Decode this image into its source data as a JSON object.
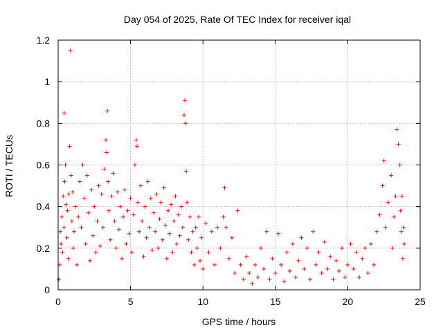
{
  "chart_data": {
    "type": "scatter",
    "title": "Day 054 of 2025, Rate Of TEC Index for receiver iqal",
    "xlabel": "GPS time / hours",
    "ylabel": "ROTI / TECUs",
    "xlim": [
      0,
      25
    ],
    "ylim": [
      0,
      1.2
    ],
    "xticks": [
      0,
      5,
      10,
      15,
      20,
      25
    ],
    "xtick_labels": [
      "0",
      "5",
      "10",
      "15",
      "20",
      "25"
    ],
    "yticks": [
      0,
      0.2,
      0.4,
      0.6,
      0.8,
      1.0,
      1.2
    ],
    "ytick_labels": [
      "0",
      "0.2",
      "0.4",
      "0.6",
      "0.8",
      "1",
      "1.2"
    ],
    "grid": true,
    "marker": "plus",
    "color": "#ff0000",
    "series": [
      {
        "name": "ROTI",
        "points": [
          [
            0.05,
            0.05
          ],
          [
            0.1,
            0.12
          ],
          [
            0.15,
            0.28
          ],
          [
            0.2,
            0.22
          ],
          [
            0.25,
            0.35
          ],
          [
            0.3,
            0.18
          ],
          [
            0.35,
            0.45
          ],
          [
            0.4,
            0.3
          ],
          [
            0.45,
            0.52
          ],
          [
            0.5,
            0.6
          ],
          [
            0.42,
            0.85
          ],
          [
            0.55,
            0.41
          ],
          [
            0.6,
            0.25
          ],
          [
            0.65,
            0.38
          ],
          [
            0.7,
            0.15
          ],
          [
            0.75,
            0.46
          ],
          [
            0.8,
            0.69
          ],
          [
            0.85,
            1.15
          ],
          [
            0.9,
            0.55
          ],
          [
            0.95,
            0.33
          ],
          [
            1.0,
            0.47
          ],
          [
            1.05,
            0.2
          ],
          [
            1.1,
            0.28
          ],
          [
            1.2,
            0.4
          ],
          [
            1.3,
            0.12
          ],
          [
            1.4,
            0.35
          ],
          [
            1.5,
            0.52
          ],
          [
            1.6,
            0.3
          ],
          [
            1.7,
            0.6
          ],
          [
            1.8,
            0.44
          ],
          [
            1.9,
            0.22
          ],
          [
            2.0,
            0.55
          ],
          [
            2.1,
            0.37
          ],
          [
            2.2,
            0.14
          ],
          [
            2.3,
            0.48
          ],
          [
            2.4,
            0.26
          ],
          [
            2.5,
            0.4
          ],
          [
            2.6,
            0.18
          ],
          [
            2.7,
            0.33
          ],
          [
            2.8,
            0.5
          ],
          [
            2.9,
            0.21
          ],
          [
            3.0,
            0.46
          ],
          [
            3.1,
            0.3
          ],
          [
            3.2,
            0.58
          ],
          [
            3.3,
            0.72
          ],
          [
            3.35,
            0.66
          ],
          [
            3.4,
            0.86
          ],
          [
            3.45,
            0.52
          ],
          [
            3.5,
            0.38
          ],
          [
            3.6,
            0.24
          ],
          [
            3.7,
            0.45
          ],
          [
            3.8,
            0.56
          ],
          [
            3.9,
            0.33
          ],
          [
            4.0,
            0.2
          ],
          [
            4.1,
            0.47
          ],
          [
            4.2,
            0.29
          ],
          [
            4.3,
            0.4
          ],
          [
            4.4,
            0.15
          ],
          [
            4.5,
            0.35
          ],
          [
            4.6,
            0.48
          ],
          [
            4.7,
            0.22
          ],
          [
            4.8,
            0.38
          ],
          [
            4.9,
            0.27
          ],
          [
            5.0,
            0.44
          ],
          [
            5.1,
            0.18
          ],
          [
            5.2,
            0.36
          ],
          [
            5.3,
            0.6
          ],
          [
            5.4,
            0.72
          ],
          [
            5.45,
            0.69
          ],
          [
            5.5,
            0.42
          ],
          [
            5.6,
            0.28
          ],
          [
            5.7,
            0.5
          ],
          [
            5.8,
            0.33
          ],
          [
            5.9,
            0.16
          ],
          [
            6.0,
            0.4
          ],
          [
            6.1,
            0.25
          ],
          [
            6.2,
            0.52
          ],
          [
            6.3,
            0.3
          ],
          [
            6.4,
            0.44
          ],
          [
            6.5,
            0.19
          ],
          [
            6.6,
            0.37
          ],
          [
            6.7,
            0.28
          ],
          [
            6.8,
            0.46
          ],
          [
            6.9,
            0.2
          ],
          [
            7.0,
            0.34
          ],
          [
            7.1,
            0.42
          ],
          [
            7.2,
            0.24
          ],
          [
            7.3,
            0.49
          ],
          [
            7.4,
            0.31
          ],
          [
            7.5,
            0.15
          ],
          [
            7.6,
            0.38
          ],
          [
            7.7,
            0.27
          ],
          [
            7.8,
            0.41
          ],
          [
            7.9,
            0.18
          ],
          [
            8.0,
            0.33
          ],
          [
            8.1,
            0.45
          ],
          [
            8.2,
            0.22
          ],
          [
            8.3,
            0.36
          ],
          [
            8.4,
            0.26
          ],
          [
            8.5,
            0.4
          ],
          [
            8.6,
            0.3
          ],
          [
            8.7,
            0.84
          ],
          [
            8.75,
            0.91
          ],
          [
            8.8,
            0.8
          ],
          [
            8.85,
            0.57
          ],
          [
            8.9,
            0.42
          ],
          [
            9.0,
            0.24
          ],
          [
            9.1,
            0.35
          ],
          [
            9.2,
            0.18
          ],
          [
            9.3,
            0.28
          ],
          [
            9.4,
            0.12
          ],
          [
            9.5,
            0.3
          ],
          [
            9.6,
            0.2
          ],
          [
            9.7,
            0.35
          ],
          [
            9.8,
            0.14
          ],
          [
            9.9,
            0.25
          ],
          [
            10.0,
            0.1
          ],
          [
            10.2,
            0.32
          ],
          [
            10.4,
            0.18
          ],
          [
            10.6,
            0.28
          ],
          [
            10.8,
            0.12
          ],
          [
            11.0,
            0.3
          ],
          [
            11.2,
            0.2
          ],
          [
            11.4,
            0.35
          ],
          [
            11.5,
            0.49
          ],
          [
            11.6,
            0.3
          ],
          [
            11.8,
            0.15
          ],
          [
            12.0,
            0.25
          ],
          [
            12.2,
            0.08
          ],
          [
            12.4,
            0.38
          ],
          [
            12.6,
            0.12
          ],
          [
            12.8,
            0.05
          ],
          [
            13.0,
            0.16
          ],
          [
            13.2,
            0.08
          ],
          [
            13.4,
            0.03
          ],
          [
            13.6,
            0.12
          ],
          [
            13.8,
            0.06
          ],
          [
            14.0,
            0.2
          ],
          [
            14.2,
            0.1
          ],
          [
            14.4,
            0.28
          ],
          [
            14.6,
            0.05
          ],
          [
            14.8,
            0.15
          ],
          [
            15.0,
            0.08
          ],
          [
            15.2,
            0.27
          ],
          [
            15.4,
            0.12
          ],
          [
            15.6,
            0.04
          ],
          [
            15.8,
            0.18
          ],
          [
            16.0,
            0.09
          ],
          [
            16.2,
            0.22
          ],
          [
            16.4,
            0.06
          ],
          [
            16.6,
            0.14
          ],
          [
            16.8,
            0.25
          ],
          [
            17.0,
            0.1
          ],
          [
            17.2,
            0.2
          ],
          [
            17.4,
            0.05
          ],
          [
            17.6,
            0.28
          ],
          [
            17.8,
            0.12
          ],
          [
            18.0,
            0.18
          ],
          [
            18.2,
            0.08
          ],
          [
            18.4,
            0.23
          ],
          [
            18.6,
            0.1
          ],
          [
            18.8,
            0.16
          ],
          [
            19.0,
            0.05
          ],
          [
            19.2,
            0.14
          ],
          [
            19.4,
            0.09
          ],
          [
            19.6,
            0.2
          ],
          [
            19.8,
            0.06
          ],
          [
            20.0,
            0.12
          ],
          [
            20.2,
            0.22
          ],
          [
            20.4,
            0.1
          ],
          [
            20.6,
            0.18
          ],
          [
            20.8,
            0.06
          ],
          [
            21.0,
            0.15
          ],
          [
            21.2,
            0.2
          ],
          [
            21.4,
            0.08
          ],
          [
            21.6,
            0.22
          ],
          [
            21.8,
            0.12
          ],
          [
            22.0,
            0.28
          ],
          [
            22.2,
            0.36
          ],
          [
            22.4,
            0.5
          ],
          [
            22.5,
            0.62
          ],
          [
            22.6,
            0.3
          ],
          [
            22.8,
            0.42
          ],
          [
            23.0,
            0.55
          ],
          [
            23.1,
            0.2
          ],
          [
            23.2,
            0.35
          ],
          [
            23.3,
            0.45
          ],
          [
            23.4,
            0.77
          ],
          [
            23.5,
            0.7
          ],
          [
            23.6,
            0.6
          ],
          [
            23.65,
            0.38
          ],
          [
            23.7,
            0.28
          ],
          [
            23.75,
            0.45
          ],
          [
            23.8,
            0.15
          ],
          [
            23.85,
            0.3
          ],
          [
            23.9,
            0.22
          ]
        ]
      }
    ]
  }
}
